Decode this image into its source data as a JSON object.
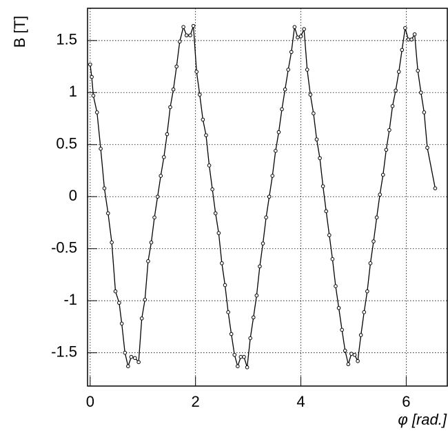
{
  "chart_data": {
    "type": "line",
    "xlabel": "φ [rad.]",
    "ylabel": "B [T]",
    "x": [
      0.0,
      0.03,
      0.06,
      0.13,
      0.2,
      0.27,
      0.34,
      0.41,
      0.48,
      0.55,
      0.6,
      0.66,
      0.72,
      0.78,
      0.85,
      0.92,
      0.98,
      1.04,
      1.1,
      1.16,
      1.22,
      1.28,
      1.34,
      1.4,
      1.46,
      1.52,
      1.58,
      1.64,
      1.7,
      1.77,
      1.83,
      1.9,
      1.96,
      2.02,
      2.08,
      2.14,
      2.2,
      2.26,
      2.32,
      2.38,
      2.44,
      2.5,
      2.56,
      2.62,
      2.68,
      2.74,
      2.8,
      2.86,
      2.92,
      2.98,
      3.04,
      3.1,
      3.16,
      3.22,
      3.28,
      3.34,
      3.4,
      3.46,
      3.52,
      3.58,
      3.64,
      3.7,
      3.76,
      3.82,
      3.88,
      3.94,
      4.0,
      4.06,
      4.12,
      4.18,
      4.24,
      4.3,
      4.36,
      4.42,
      4.48,
      4.54,
      4.6,
      4.66,
      4.72,
      4.78,
      4.84,
      4.9,
      4.96,
      5.02,
      5.08,
      5.14,
      5.2,
      5.26,
      5.32,
      5.38,
      5.44,
      5.5,
      5.56,
      5.62,
      5.68,
      5.74,
      5.8,
      5.86,
      5.92,
      5.98,
      6.04,
      6.1,
      6.16,
      6.22,
      6.28,
      6.34,
      6.4,
      6.55
    ],
    "series": [
      {
        "name": "B",
        "color": "#000000",
        "values": [
          1.27,
          1.15,
          0.97,
          0.81,
          0.46,
          0.08,
          -0.16,
          -0.44,
          -0.91,
          -1.02,
          -1.22,
          -1.5,
          -1.63,
          -1.54,
          -1.55,
          -1.59,
          -1.17,
          -0.99,
          -0.62,
          -0.44,
          -0.2,
          0.0,
          0.2,
          0.38,
          0.6,
          0.86,
          1.03,
          1.25,
          1.49,
          1.63,
          1.55,
          1.55,
          1.64,
          1.2,
          0.98,
          0.74,
          0.59,
          0.3,
          0.07,
          -0.16,
          -0.35,
          -0.64,
          -0.85,
          -1.11,
          -1.32,
          -1.52,
          -1.63,
          -1.54,
          -1.54,
          -1.64,
          -1.36,
          -1.16,
          -0.95,
          -0.67,
          -0.45,
          -0.2,
          0.0,
          0.2,
          0.44,
          0.62,
          0.84,
          1.03,
          1.22,
          1.39,
          1.63,
          1.53,
          1.54,
          1.61,
          1.22,
          0.98,
          0.8,
          0.55,
          0.37,
          0.1,
          -0.14,
          -0.37,
          -0.6,
          -0.86,
          -1.07,
          -1.28,
          -1.48,
          -1.61,
          -1.51,
          -1.52,
          -1.58,
          -1.33,
          -1.11,
          -0.91,
          -0.64,
          -0.43,
          -0.2,
          0.02,
          0.21,
          0.45,
          0.64,
          0.87,
          1.02,
          1.2,
          1.41,
          1.62,
          1.51,
          1.51,
          1.56,
          1.21,
          1.0,
          0.81,
          0.47,
          0.08
        ]
      }
    ],
    "xlim": [
      -0.05,
      6.78
    ],
    "ylim": [
      -1.82,
      1.81
    ],
    "xticks": [
      0,
      2,
      4,
      6
    ],
    "yticks": [
      -1.5,
      -1,
      -0.5,
      0,
      0.5,
      1,
      1.5
    ],
    "grid": true
  }
}
